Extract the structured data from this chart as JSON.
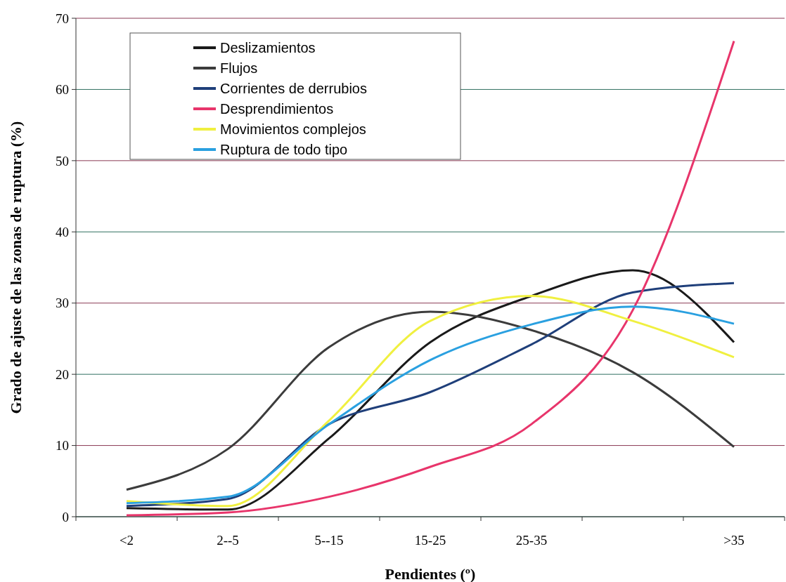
{
  "chart_data": {
    "type": "line",
    "xlabel": "Pendientes (º)",
    "ylabel": "Grado de ajuste de las zonas de ruptura (%)",
    "categories": [
      "<2",
      "2--5",
      "5--15",
      "15-25",
      "25-35",
      null,
      ">35"
    ],
    "ylim": [
      0,
      70
    ],
    "yticks": [
      0,
      10,
      20,
      30,
      40,
      50,
      60,
      70
    ],
    "grid": "y",
    "legend": "top left",
    "marker": "none",
    "line_style": "solid",
    "series": [
      {
        "name": "Deslizamientos",
        "color": "#1a1a1a",
        "values": [
          1.2,
          1.0,
          11,
          24.5,
          31,
          34.6,
          24.5
        ]
      },
      {
        "name": "Flujos",
        "color": "#3c3c3c",
        "values": [
          3.8,
          9.5,
          23.8,
          28.8,
          26.2,
          20.3,
          9.8
        ]
      },
      {
        "name": "Corrientes de derrubios",
        "color": "#1f3f7a",
        "values": [
          1.5,
          2.5,
          13,
          17.5,
          24.2,
          31.5,
          32.8
        ]
      },
      {
        "name": "Desprendimientos",
        "color": "#e8356b",
        "values": [
          0.2,
          0.6,
          2.8,
          7,
          13,
          29,
          66.8
        ]
      },
      {
        "name": "Movimientos complejos",
        "color": "#f0f040",
        "values": [
          2.2,
          1.5,
          13.5,
          27.5,
          31,
          27.5,
          22.4
        ]
      },
      {
        "name": "Ruptura de todo tipo",
        "color": "#2aa0e0",
        "values": [
          1.9,
          2.8,
          13,
          22,
          27,
          29.5,
          27.1
        ]
      }
    ]
  }
}
